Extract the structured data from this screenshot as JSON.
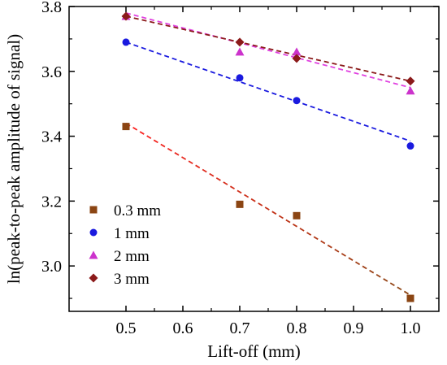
{
  "chart_data": {
    "type": "scatter",
    "xlabel": "Lift-off (mm)",
    "ylabel": "ln(peak-to-peak amplitude of signal)",
    "xlim": [
      0.4,
      1.05
    ],
    "ylim": [
      2.86,
      3.8
    ],
    "xticks": [
      0.5,
      0.6,
      0.7,
      0.8,
      0.9,
      1.0
    ],
    "xtick_labels": [
      "0.5",
      "0.6",
      "0.7",
      "0.8",
      "0.9",
      "1.0"
    ],
    "yticks": [
      3.0,
      3.2,
      3.4,
      3.6,
      3.8
    ],
    "ytick_labels": [
      "3.0",
      "3.2",
      "3.4",
      "3.6",
      "3.8"
    ],
    "legend_position": "bottom-left",
    "grid": false,
    "series": [
      {
        "name": "0.3 mm",
        "marker": "square",
        "color": "#8B4513",
        "x": [
          0.5,
          0.7,
          0.8,
          1.0
        ],
        "y": [
          3.43,
          3.19,
          3.155,
          2.9
        ],
        "fit": {
          "x": [
            0.5,
            1.0
          ],
          "y": [
            3.44,
            2.91
          ],
          "color_start": "#ff2020",
          "color_end": "#8B4513"
        }
      },
      {
        "name": "1 mm",
        "marker": "circle",
        "color": "#1a1adf",
        "x": [
          0.5,
          0.7,
          0.8,
          1.0
        ],
        "y": [
          3.69,
          3.58,
          3.51,
          3.37
        ],
        "fit": {
          "x": [
            0.5,
            1.0
          ],
          "y": [
            3.69,
            3.385
          ],
          "color_start": "#1a1adf",
          "color_end": "#1a1adf"
        }
      },
      {
        "name": "2 mm",
        "marker": "triangle",
        "color": "#cc33cc",
        "x": [
          0.5,
          0.7,
          0.8,
          1.0
        ],
        "y": [
          3.77,
          3.66,
          3.66,
          3.54
        ],
        "fit": {
          "x": [
            0.5,
            1.0
          ],
          "y": [
            3.78,
            3.55
          ],
          "color_start": "#e040e0",
          "color_end": "#e040e0"
        }
      },
      {
        "name": "3 mm",
        "marker": "diamond",
        "color": "#8B1A1A",
        "x": [
          0.5,
          0.7,
          0.8,
          1.0
        ],
        "y": [
          3.77,
          3.69,
          3.64,
          3.57
        ],
        "fit": {
          "x": [
            0.5,
            1.0
          ],
          "y": [
            3.77,
            3.57
          ],
          "color_start": "#8B1A1A",
          "color_end": "#8B1A1A"
        }
      }
    ]
  }
}
